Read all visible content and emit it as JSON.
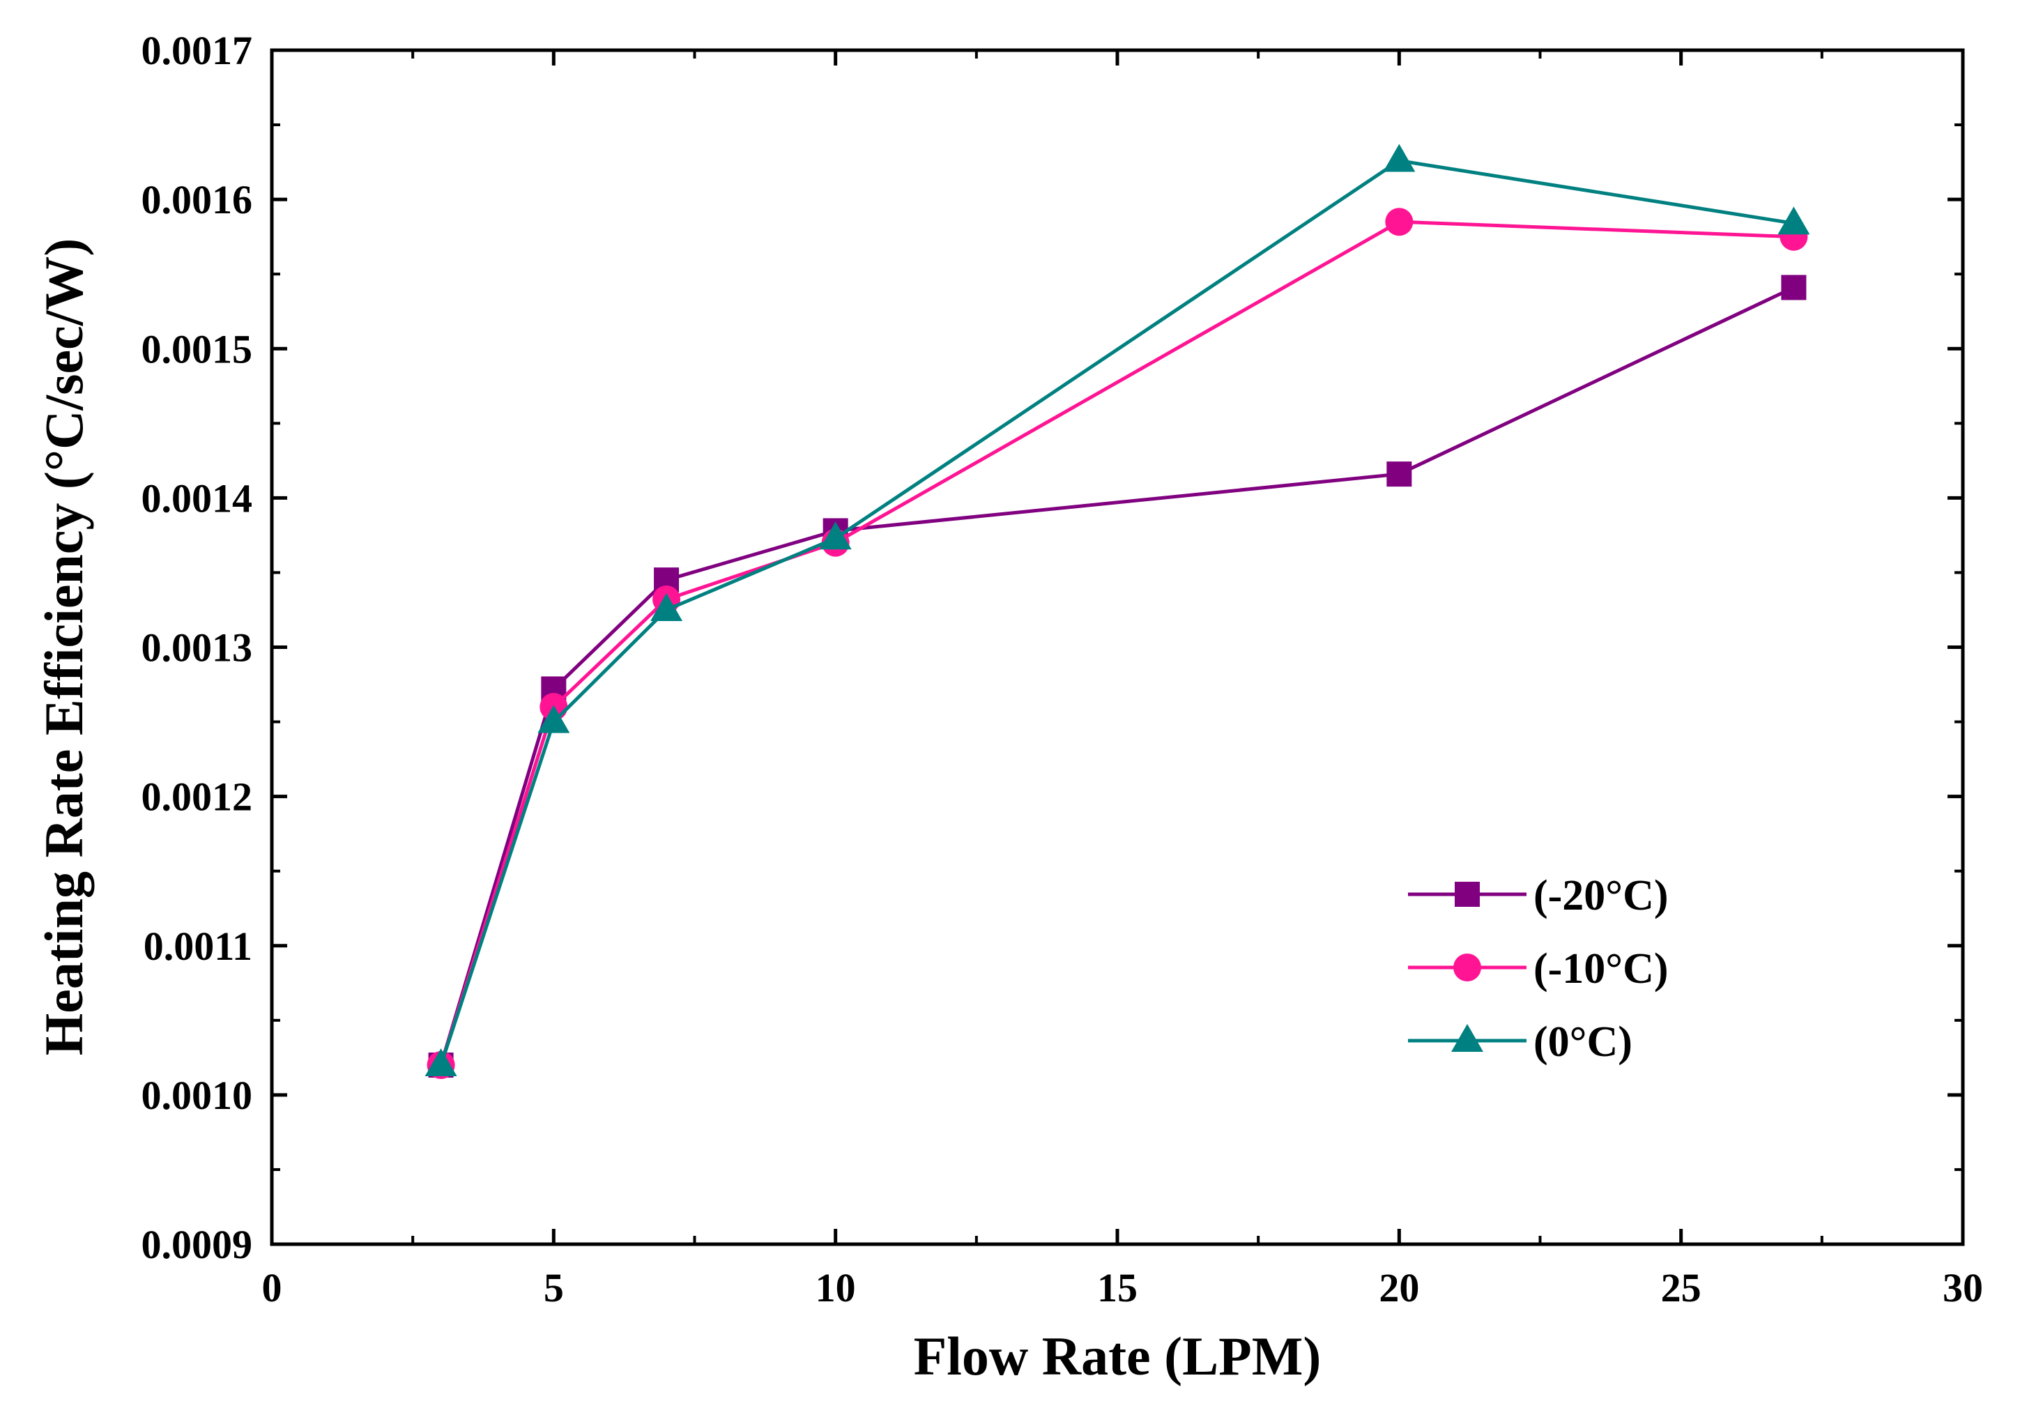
{
  "chart_data": {
    "type": "line",
    "title": "",
    "xlabel": "Flow Rate (LPM)",
    "ylabel": "Heating Rate Efficiency (°C/sec/W)",
    "xlim": [
      0,
      30
    ],
    "ylim": [
      0.0009,
      0.0017
    ],
    "x_ticks": [
      0,
      5,
      10,
      15,
      20,
      25,
      30
    ],
    "x_tick_labels": [
      "0",
      "5",
      "10",
      "15",
      "20",
      "25",
      "30"
    ],
    "y_ticks": [
      0.0009,
      0.001,
      0.0011,
      0.0012,
      0.0013,
      0.0014,
      0.0015,
      0.0016,
      0.0017
    ],
    "y_tick_labels": [
      "0.0009",
      "0.0010",
      "0.0011",
      "0.0012",
      "0.0013",
      "0.0014",
      "0.0015",
      "0.0016",
      "0.0017"
    ],
    "grid": false,
    "legend_position": "bottom-right",
    "x": [
      3,
      5,
      7,
      10,
      20,
      27
    ],
    "series": [
      {
        "name": "(-20°C)",
        "marker": "square",
        "color": "#800080",
        "values": [
          0.00102,
          0.001272,
          0.001345,
          0.001378,
          0.001416,
          0.001541
        ]
      },
      {
        "name": "(-10°C)",
        "marker": "circle",
        "color": "#ff1493",
        "values": [
          0.00102,
          0.00126,
          0.001332,
          0.00137,
          0.001585,
          0.001575
        ]
      },
      {
        "name": "(0°C)",
        "marker": "triangle",
        "color": "#008080",
        "values": [
          0.00102,
          0.00125,
          0.001325,
          0.001373,
          0.001626,
          0.001584
        ]
      }
    ]
  }
}
